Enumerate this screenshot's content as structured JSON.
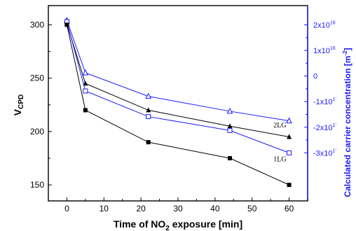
{
  "chart_data": {
    "type": "line",
    "title": "",
    "x": [
      0,
      5,
      22,
      44,
      60
    ],
    "xlabel_parts": [
      "Time of NO",
      "2",
      " exposure [min]"
    ],
    "xlim": [
      -5,
      65
    ],
    "xticks": [
      0,
      10,
      20,
      30,
      40,
      50,
      60
    ],
    "ylabel_parts": [
      "V",
      "CPD"
    ],
    "ylim": [
      135,
      318
    ],
    "yticks": [
      150,
      200,
      250,
      300
    ],
    "y2label": "Calculated carrier concentration [m",
    "y2label_sup": "-2",
    "y2label_end": "]",
    "y2ticks": [
      {
        "y": 300,
        "base": "2x10",
        "exp": "16"
      },
      {
        "y": 276,
        "base": "1x10",
        "exp": "16"
      },
      {
        "y": 252,
        "base": "0",
        "exp": ""
      },
      {
        "y": 228,
        "base": "-1x10",
        "exp": "1’"
      },
      {
        "y": 204,
        "base": "-2x10",
        "exp": "1’"
      },
      {
        "y": 180,
        "base": "-3x10",
        "exp": "1’"
      }
    ],
    "grid": false,
    "series": [
      {
        "name": "2LG",
        "axis": "left",
        "color": "#000000",
        "marker": "filled-triangle",
        "values": [
          301,
          245,
          220,
          205,
          195
        ],
        "label_at": [
          60,
          204
        ]
      },
      {
        "name": "",
        "axis": "right",
        "color": "#1a1aff",
        "marker": "open-triangle",
        "values": [
          304,
          255,
          233,
          219,
          210
        ]
      },
      {
        "name": "",
        "axis": "right",
        "color": "#1a1aff",
        "marker": "open-square",
        "values": [
          303,
          238,
          214,
          201,
          180
        ]
      },
      {
        "name": "1LG",
        "axis": "left",
        "color": "#000000",
        "marker": "filled-square",
        "values": [
          300,
          220,
          190,
          175,
          150
        ],
        "label_at": [
          60,
          172
        ]
      }
    ]
  },
  "colors": {
    "left_axis": "#000000",
    "right_axis": "#1a1aff"
  }
}
